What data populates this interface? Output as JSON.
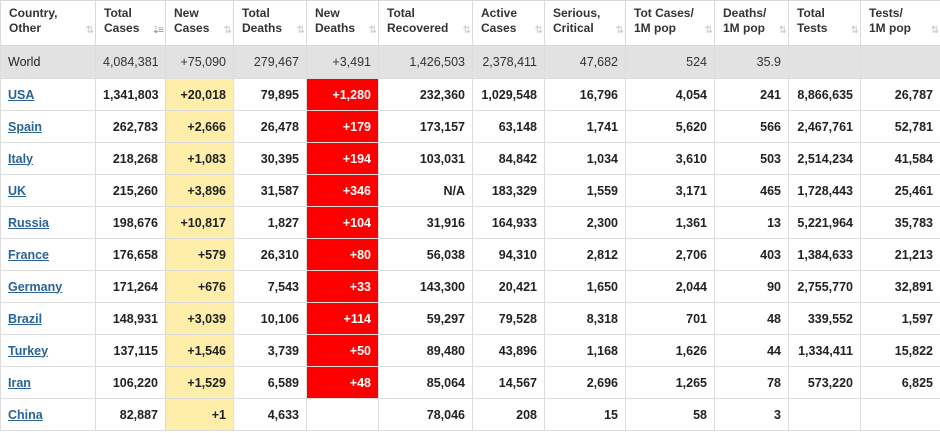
{
  "headers": [
    {
      "key": "country",
      "line1": "Country,",
      "line2": "Other",
      "sort_icon": "⇅"
    },
    {
      "key": "total_cases",
      "line1": "Total",
      "line2": "Cases",
      "sort_icon": "⇣≡",
      "sorted": true
    },
    {
      "key": "new_cases",
      "line1": "New",
      "line2": "Cases",
      "sort_icon": "⇅"
    },
    {
      "key": "total_deaths",
      "line1": "Total",
      "line2": "Deaths",
      "sort_icon": "⇅"
    },
    {
      "key": "new_deaths",
      "line1": "New",
      "line2": "Deaths",
      "sort_icon": "⇅"
    },
    {
      "key": "total_recovered",
      "line1": "Total",
      "line2": "Recovered",
      "sort_icon": "⇅"
    },
    {
      "key": "active_cases",
      "line1": "Active",
      "line2": "Cases",
      "sort_icon": "⇅"
    },
    {
      "key": "serious_critical",
      "line1": "Serious,",
      "line2": "Critical",
      "sort_icon": "⇅"
    },
    {
      "key": "tot_cases_1m",
      "line1": "Tot Cases/",
      "line2": "1M pop",
      "sort_icon": "⇅"
    },
    {
      "key": "deaths_1m",
      "line1": "Deaths/",
      "line2": "1M pop",
      "sort_icon": "⇅"
    },
    {
      "key": "total_tests",
      "line1": "Total",
      "line2": "Tests",
      "sort_icon": "⇅"
    },
    {
      "key": "tests_1m",
      "line1": "Tests/",
      "line2": "1M pop",
      "sort_icon": "⇅"
    }
  ],
  "colors": {
    "new_cases_highlight": "#ffeeaa",
    "new_deaths_highlight": "#ff0000",
    "world_row_bg": "#e2e2e2",
    "link": "#2a6395"
  },
  "world": {
    "country": "World",
    "total_cases": "4,084,381",
    "new_cases": "+75,090",
    "total_deaths": "279,467",
    "new_deaths": "+3,491",
    "total_recovered": "1,426,503",
    "active_cases": "2,378,411",
    "serious_critical": "47,682",
    "tot_cases_1m": "524",
    "deaths_1m": "35.9",
    "total_tests": "",
    "tests_1m": ""
  },
  "rows": [
    {
      "country": "USA",
      "total_cases": "1,341,803",
      "new_cases": "+20,018",
      "total_deaths": "79,895",
      "new_deaths": "+1,280",
      "total_recovered": "232,360",
      "active_cases": "1,029,548",
      "serious_critical": "16,796",
      "tot_cases_1m": "4,054",
      "deaths_1m": "241",
      "total_tests": "8,866,635",
      "tests_1m": "26,787"
    },
    {
      "country": "Spain",
      "total_cases": "262,783",
      "new_cases": "+2,666",
      "total_deaths": "26,478",
      "new_deaths": "+179",
      "total_recovered": "173,157",
      "active_cases": "63,148",
      "serious_critical": "1,741",
      "tot_cases_1m": "5,620",
      "deaths_1m": "566",
      "total_tests": "2,467,761",
      "tests_1m": "52,781"
    },
    {
      "country": "Italy",
      "total_cases": "218,268",
      "new_cases": "+1,083",
      "total_deaths": "30,395",
      "new_deaths": "+194",
      "total_recovered": "103,031",
      "active_cases": "84,842",
      "serious_critical": "1,034",
      "tot_cases_1m": "3,610",
      "deaths_1m": "503",
      "total_tests": "2,514,234",
      "tests_1m": "41,584"
    },
    {
      "country": "UK",
      "total_cases": "215,260",
      "new_cases": "+3,896",
      "total_deaths": "31,587",
      "new_deaths": "+346",
      "total_recovered": "N/A",
      "active_cases": "183,329",
      "serious_critical": "1,559",
      "tot_cases_1m": "3,171",
      "deaths_1m": "465",
      "total_tests": "1,728,443",
      "tests_1m": "25,461"
    },
    {
      "country": "Russia",
      "total_cases": "198,676",
      "new_cases": "+10,817",
      "total_deaths": "1,827",
      "new_deaths": "+104",
      "total_recovered": "31,916",
      "active_cases": "164,933",
      "serious_critical": "2,300",
      "tot_cases_1m": "1,361",
      "deaths_1m": "13",
      "total_tests": "5,221,964",
      "tests_1m": "35,783"
    },
    {
      "country": "France",
      "total_cases": "176,658",
      "new_cases": "+579",
      "total_deaths": "26,310",
      "new_deaths": "+80",
      "total_recovered": "56,038",
      "active_cases": "94,310",
      "serious_critical": "2,812",
      "tot_cases_1m": "2,706",
      "deaths_1m": "403",
      "total_tests": "1,384,633",
      "tests_1m": "21,213"
    },
    {
      "country": "Germany",
      "total_cases": "171,264",
      "new_cases": "+676",
      "total_deaths": "7,543",
      "new_deaths": "+33",
      "total_recovered": "143,300",
      "active_cases": "20,421",
      "serious_critical": "1,650",
      "tot_cases_1m": "2,044",
      "deaths_1m": "90",
      "total_tests": "2,755,770",
      "tests_1m": "32,891"
    },
    {
      "country": "Brazil",
      "total_cases": "148,931",
      "new_cases": "+3,039",
      "total_deaths": "10,106",
      "new_deaths": "+114",
      "total_recovered": "59,297",
      "active_cases": "79,528",
      "serious_critical": "8,318",
      "tot_cases_1m": "701",
      "deaths_1m": "48",
      "total_tests": "339,552",
      "tests_1m": "1,597"
    },
    {
      "country": "Turkey",
      "total_cases": "137,115",
      "new_cases": "+1,546",
      "total_deaths": "3,739",
      "new_deaths": "+50",
      "total_recovered": "89,480",
      "active_cases": "43,896",
      "serious_critical": "1,168",
      "tot_cases_1m": "1,626",
      "deaths_1m": "44",
      "total_tests": "1,334,411",
      "tests_1m": "15,822"
    },
    {
      "country": "Iran",
      "total_cases": "106,220",
      "new_cases": "+1,529",
      "total_deaths": "6,589",
      "new_deaths": "+48",
      "total_recovered": "85,064",
      "active_cases": "14,567",
      "serious_critical": "2,696",
      "tot_cases_1m": "1,265",
      "deaths_1m": "78",
      "total_tests": "573,220",
      "tests_1m": "6,825"
    },
    {
      "country": "China",
      "total_cases": "82,887",
      "new_cases": "+1",
      "total_deaths": "4,633",
      "new_deaths": "",
      "total_recovered": "78,046",
      "active_cases": "208",
      "serious_critical": "15",
      "tot_cases_1m": "58",
      "deaths_1m": "3",
      "total_tests": "",
      "tests_1m": ""
    }
  ]
}
